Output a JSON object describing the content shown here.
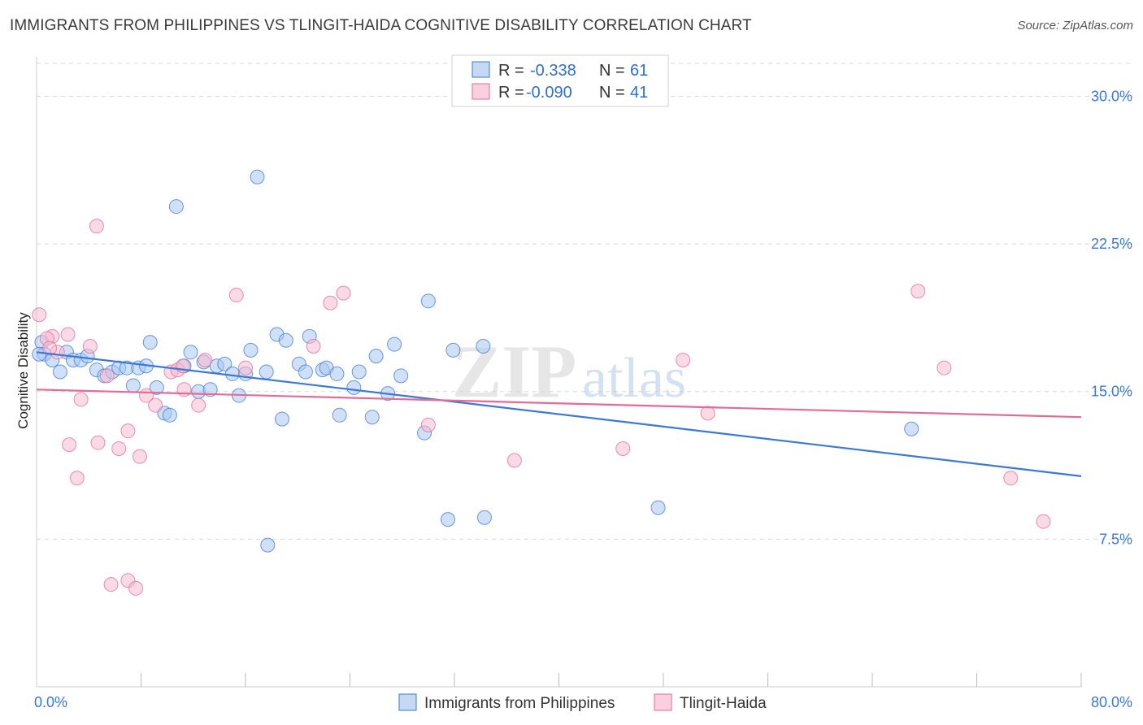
{
  "title": "IMMIGRANTS FROM PHILIPPINES VS TLINGIT-HAIDA COGNITIVE DISABILITY CORRELATION CHART",
  "source": "Source: ZipAtlas.com",
  "watermark": {
    "zip": "ZIP",
    "atlas": "atlas"
  },
  "colors": {
    "blue": "#3b78d8",
    "blue_fill": "#aac8f0",
    "pink": "#e36b96",
    "pink_fill": "#f6bcd0",
    "grid": "#d8d8d8",
    "tick_text": "#3b78d8"
  },
  "legend": {
    "rows": [
      {
        "r_label": "R =",
        "r_value": "-0.338",
        "n_label": "N =",
        "n_value": "61"
      },
      {
        "r_label": "R =",
        "r_value": "-0.090",
        "n_label": "N =",
        "n_value": "41"
      }
    ]
  },
  "bottom_legend": [
    "Immigrants from Philippines",
    "Tlingit-Haida"
  ],
  "chart_data": {
    "type": "scatter",
    "title": "IMMIGRANTS FROM PHILIPPINES VS TLINGIT-HAIDA COGNITIVE DISABILITY CORRELATION CHART",
    "xlabel": "",
    "ylabel": "Cognitive Disability",
    "xlim": [
      0,
      80
    ],
    "ylim": [
      0,
      32
    ],
    "x_tick_labels": [
      {
        "value": 0,
        "label": "0.0%"
      },
      {
        "value": 80,
        "label": "80.0%"
      }
    ],
    "x_minor_ticks": [
      8,
      16,
      24,
      32,
      40,
      48,
      56,
      64,
      72,
      80
    ],
    "y_ticks": [
      {
        "value": 7.5,
        "label": "7.5%"
      },
      {
        "value": 15.0,
        "label": "15.0%"
      },
      {
        "value": 22.5,
        "label": "22.5%"
      },
      {
        "value": 30.0,
        "label": "30.0%"
      }
    ],
    "grid": true,
    "legend_position": "top-center",
    "series": [
      {
        "name": "Immigrants from Philippines",
        "color": "#3b78d8",
        "trend": {
          "x": [
            0,
            80
          ],
          "y": [
            17.0,
            10.7
          ]
        },
        "points": [
          [
            0.4,
            17.5
          ],
          [
            0.6,
            16.9
          ],
          [
            1.2,
            16.6
          ],
          [
            1.8,
            16.0
          ],
          [
            2.3,
            17.0
          ],
          [
            2.8,
            16.6
          ],
          [
            3.4,
            16.6
          ],
          [
            3.9,
            16.8
          ],
          [
            4.6,
            16.1
          ],
          [
            5.2,
            15.8
          ],
          [
            5.8,
            16.0
          ],
          [
            6.3,
            16.2
          ],
          [
            6.9,
            16.2
          ],
          [
            7.4,
            15.3
          ],
          [
            7.8,
            16.2
          ],
          [
            8.4,
            16.3
          ],
          [
            8.7,
            17.5
          ],
          [
            9.2,
            15.2
          ],
          [
            9.8,
            13.9
          ],
          [
            10.2,
            13.8
          ],
          [
            10.7,
            24.4
          ],
          [
            11.3,
            16.3
          ],
          [
            11.8,
            17.0
          ],
          [
            12.4,
            15.0
          ],
          [
            12.8,
            16.5
          ],
          [
            13.3,
            15.1
          ],
          [
            13.8,
            16.3
          ],
          [
            14.4,
            16.4
          ],
          [
            15.0,
            15.9
          ],
          [
            15.5,
            14.8
          ],
          [
            16.0,
            15.9
          ],
          [
            16.4,
            17.1
          ],
          [
            16.9,
            25.9
          ],
          [
            17.6,
            16.0
          ],
          [
            17.7,
            7.2
          ],
          [
            18.4,
            17.9
          ],
          [
            18.8,
            13.6
          ],
          [
            19.1,
            17.6
          ],
          [
            20.1,
            16.4
          ],
          [
            20.6,
            16.0
          ],
          [
            20.9,
            17.8
          ],
          [
            21.9,
            16.1
          ],
          [
            22.2,
            16.2
          ],
          [
            23.0,
            15.9
          ],
          [
            23.2,
            13.8
          ],
          [
            24.3,
            15.2
          ],
          [
            24.7,
            16.0
          ],
          [
            25.7,
            13.7
          ],
          [
            26.0,
            16.8
          ],
          [
            26.9,
            14.9
          ],
          [
            27.4,
            17.4
          ],
          [
            27.9,
            15.8
          ],
          [
            29.7,
            12.9
          ],
          [
            30.0,
            19.6
          ],
          [
            31.5,
            8.5
          ],
          [
            31.9,
            17.1
          ],
          [
            34.2,
            17.3
          ],
          [
            34.3,
            8.6
          ],
          [
            47.6,
            9.1
          ],
          [
            67.0,
            13.1
          ],
          [
            0.2,
            16.9
          ]
        ]
      },
      {
        "name": "Tlingit-Haida",
        "color": "#e36b96",
        "trend": {
          "x": [
            0,
            80
          ],
          "y": [
            15.1,
            13.7
          ]
        },
        "points": [
          [
            0.2,
            18.9
          ],
          [
            1.2,
            17.8
          ],
          [
            1.6,
            17.0
          ],
          [
            2.4,
            17.9
          ],
          [
            2.5,
            12.3
          ],
          [
            3.1,
            10.6
          ],
          [
            3.4,
            14.6
          ],
          [
            4.1,
            17.3
          ],
          [
            4.6,
            23.4
          ],
          [
            4.7,
            12.4
          ],
          [
            5.4,
            15.8
          ],
          [
            5.7,
            5.2
          ],
          [
            6.3,
            12.1
          ],
          [
            7.0,
            13.0
          ],
          [
            7.0,
            5.4
          ],
          [
            7.6,
            5.0
          ],
          [
            7.9,
            11.7
          ],
          [
            8.4,
            14.8
          ],
          [
            9.1,
            14.3
          ],
          [
            10.3,
            16.0
          ],
          [
            10.8,
            16.1
          ],
          [
            11.2,
            16.3
          ],
          [
            11.3,
            15.1
          ],
          [
            12.4,
            14.3
          ],
          [
            12.9,
            16.6
          ],
          [
            15.3,
            19.9
          ],
          [
            16.0,
            16.2
          ],
          [
            21.2,
            17.3
          ],
          [
            22.5,
            19.5
          ],
          [
            23.5,
            20.0
          ],
          [
            30.0,
            13.3
          ],
          [
            36.6,
            11.5
          ],
          [
            44.9,
            12.1
          ],
          [
            49.5,
            16.6
          ],
          [
            51.4,
            13.9
          ],
          [
            67.5,
            20.1
          ],
          [
            69.5,
            16.2
          ],
          [
            74.6,
            10.6
          ],
          [
            77.1,
            8.4
          ],
          [
            0.8,
            17.7
          ],
          [
            1.0,
            17.2
          ]
        ]
      }
    ]
  }
}
